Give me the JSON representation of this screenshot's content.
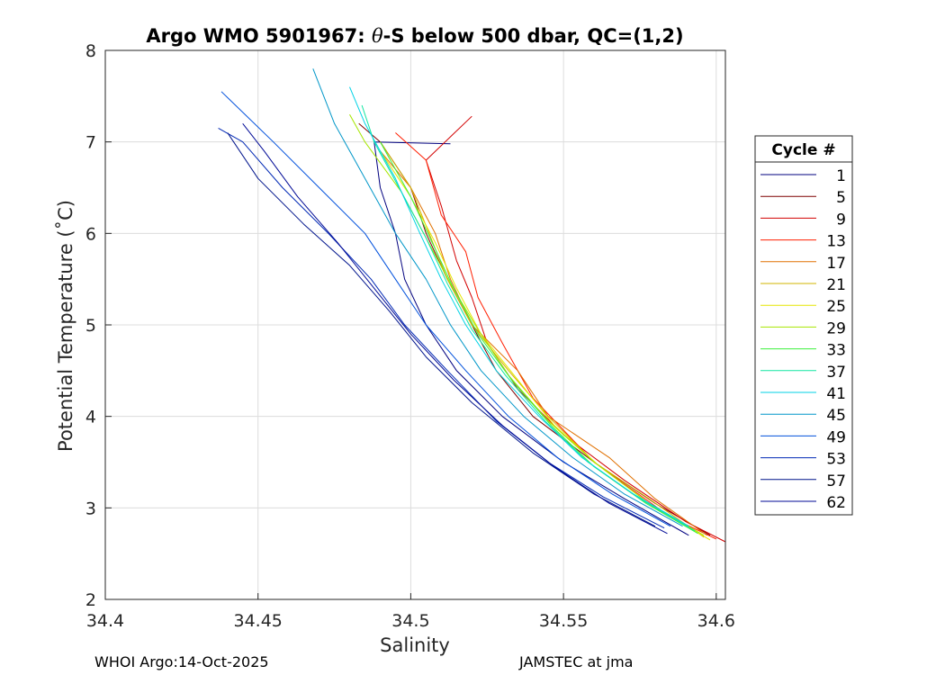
{
  "chart_data": {
    "type": "line",
    "title_prefix": "Argo WMO 5901967: ",
    "title_theta": "θ",
    "title_suffix": "-S below 500 dbar,  QC=(1,2)",
    "xlabel": "Salinity",
    "ylabel": "Potential Temperature (˚C)",
    "xlim": [
      34.4,
      34.603
    ],
    "ylim": [
      2,
      8
    ],
    "xticks": [
      34.4,
      34.45,
      34.5,
      34.55,
      34.6
    ],
    "xtick_labels": [
      "34.4",
      "34.45",
      "34.5",
      "34.55",
      "34.6"
    ],
    "yticks": [
      2,
      3,
      4,
      5,
      6,
      7,
      8
    ],
    "ytick_labels": [
      "2",
      "3",
      "4",
      "5",
      "6",
      "7",
      "8"
    ],
    "grid": true,
    "legend": {
      "title": "Cycle #",
      "placement": "right-outside",
      "entries": [
        {
          "label": "1",
          "color": "#00007f"
        },
        {
          "label": "5",
          "color": "#7f0000"
        },
        {
          "label": "9",
          "color": "#d20000"
        },
        {
          "label": "13",
          "color": "#ff1e00"
        },
        {
          "label": "17",
          "color": "#e07000"
        },
        {
          "label": "21",
          "color": "#d2b400"
        },
        {
          "label": "25",
          "color": "#e6e600"
        },
        {
          "label": "29",
          "color": "#a6e600"
        },
        {
          "label": "33",
          "color": "#3cf03c"
        },
        {
          "label": "37",
          "color": "#10e6a0"
        },
        {
          "label": "41",
          "color": "#00d2e6"
        },
        {
          "label": "45",
          "color": "#0096c8"
        },
        {
          "label": "49",
          "color": "#0050dc"
        },
        {
          "label": "53",
          "color": "#0028b4"
        },
        {
          "label": "57",
          "color": "#00148c"
        },
        {
          "label": "62",
          "color": "#000a96"
        }
      ]
    },
    "series": [
      {
        "name": "1",
        "color": "#00007f",
        "points": [
          [
            34.591,
            2.7
          ],
          [
            34.57,
            3.1
          ],
          [
            34.55,
            3.5
          ],
          [
            34.53,
            4.0
          ],
          [
            34.515,
            4.5
          ],
          [
            34.505,
            5.0
          ],
          [
            34.498,
            5.5
          ],
          [
            34.495,
            6.0
          ],
          [
            34.49,
            6.5
          ],
          [
            34.488,
            7.0
          ],
          [
            34.513,
            6.98
          ]
        ]
      },
      {
        "name": "5",
        "color": "#7f0000",
        "points": [
          [
            34.598,
            2.7
          ],
          [
            34.58,
            3.05
          ],
          [
            34.56,
            3.5
          ],
          [
            34.54,
            4.0
          ],
          [
            34.528,
            4.5
          ],
          [
            34.52,
            5.0
          ],
          [
            34.512,
            5.5
          ],
          [
            34.505,
            6.0
          ],
          [
            34.5,
            6.5
          ],
          [
            34.49,
            7.0
          ],
          [
            34.483,
            7.2
          ]
        ]
      },
      {
        "name": "9",
        "color": "#d20000",
        "points": [
          [
            34.603,
            2.63
          ],
          [
            34.59,
            2.85
          ],
          [
            34.57,
            3.3
          ],
          [
            34.55,
            3.8
          ],
          [
            34.535,
            4.3
          ],
          [
            34.525,
            4.8
          ],
          [
            34.52,
            5.3
          ],
          [
            34.515,
            5.7
          ],
          [
            34.51,
            6.3
          ],
          [
            34.505,
            6.8
          ],
          [
            34.52,
            7.28
          ]
        ]
      },
      {
        "name": "13",
        "color": "#ff1e00",
        "points": [
          [
            34.6,
            2.66
          ],
          [
            34.585,
            2.9
          ],
          [
            34.56,
            3.5
          ],
          [
            34.54,
            4.2
          ],
          [
            34.53,
            4.8
          ],
          [
            34.522,
            5.3
          ],
          [
            34.518,
            5.8
          ],
          [
            34.51,
            6.2
          ],
          [
            34.505,
            6.8
          ],
          [
            34.495,
            7.1
          ]
        ]
      },
      {
        "name": "17",
        "color": "#e07000",
        "points": [
          [
            34.597,
            2.7
          ],
          [
            34.58,
            3.1
          ],
          [
            34.565,
            3.55
          ],
          [
            34.545,
            4.0
          ],
          [
            34.535,
            4.5
          ],
          [
            34.52,
            5.0
          ],
          [
            34.513,
            5.5
          ],
          [
            34.508,
            6.0
          ],
          [
            34.5,
            6.5
          ],
          [
            34.49,
            6.9
          ]
        ]
      },
      {
        "name": "21",
        "color": "#d2b400",
        "points": [
          [
            34.596,
            2.68
          ],
          [
            34.578,
            3.1
          ],
          [
            34.56,
            3.5
          ],
          [
            34.545,
            4.0
          ],
          [
            34.532,
            4.5
          ],
          [
            34.52,
            5.0
          ],
          [
            34.512,
            5.5
          ],
          [
            34.506,
            6.0
          ],
          [
            34.5,
            6.5
          ],
          [
            34.49,
            7.0
          ]
        ]
      },
      {
        "name": "25",
        "color": "#e6e600",
        "points": [
          [
            34.598,
            2.65
          ],
          [
            34.58,
            3.0
          ],
          [
            34.562,
            3.45
          ],
          [
            34.547,
            3.9
          ],
          [
            34.535,
            4.4
          ],
          [
            34.523,
            4.9
          ],
          [
            34.515,
            5.4
          ],
          [
            34.508,
            5.9
          ],
          [
            34.5,
            6.4
          ],
          [
            34.49,
            6.9
          ]
        ]
      },
      {
        "name": "29",
        "color": "#a6e600",
        "points": [
          [
            34.596,
            2.7
          ],
          [
            34.578,
            3.05
          ],
          [
            34.56,
            3.5
          ],
          [
            34.545,
            3.95
          ],
          [
            34.532,
            4.45
          ],
          [
            34.522,
            4.95
          ],
          [
            34.513,
            5.45
          ],
          [
            34.505,
            5.95
          ],
          [
            34.497,
            6.45
          ],
          [
            34.485,
            7.0
          ],
          [
            34.48,
            7.3
          ]
        ]
      },
      {
        "name": "33",
        "color": "#3cf03c",
        "points": [
          [
            34.594,
            2.72
          ],
          [
            34.577,
            3.05
          ],
          [
            34.56,
            3.45
          ],
          [
            34.546,
            3.9
          ],
          [
            34.533,
            4.4
          ],
          [
            34.522,
            4.9
          ],
          [
            34.514,
            5.4
          ],
          [
            34.507,
            5.9
          ],
          [
            34.5,
            6.4
          ],
          [
            34.49,
            7.0
          ]
        ]
      },
      {
        "name": "37",
        "color": "#10e6a0",
        "points": [
          [
            34.593,
            2.75
          ],
          [
            34.575,
            3.1
          ],
          [
            34.558,
            3.5
          ],
          [
            34.544,
            3.95
          ],
          [
            34.531,
            4.45
          ],
          [
            34.52,
            4.95
          ],
          [
            34.512,
            5.45
          ],
          [
            34.505,
            5.95
          ],
          [
            34.497,
            6.45
          ],
          [
            34.488,
            7.0
          ],
          [
            34.484,
            7.4
          ]
        ]
      },
      {
        "name": "41",
        "color": "#00d2e6",
        "points": [
          [
            34.591,
            2.8
          ],
          [
            34.573,
            3.15
          ],
          [
            34.556,
            3.55
          ],
          [
            34.542,
            4.0
          ],
          [
            34.528,
            4.5
          ],
          [
            34.518,
            5.0
          ],
          [
            34.51,
            5.5
          ],
          [
            34.503,
            6.0
          ],
          [
            34.495,
            6.6
          ],
          [
            34.485,
            7.2
          ],
          [
            34.48,
            7.6
          ]
        ]
      },
      {
        "name": "45",
        "color": "#0096c8",
        "points": [
          [
            34.589,
            2.8
          ],
          [
            34.57,
            3.15
          ],
          [
            34.553,
            3.55
          ],
          [
            34.537,
            4.0
          ],
          [
            34.523,
            4.5
          ],
          [
            34.513,
            5.0
          ],
          [
            34.505,
            5.5
          ],
          [
            34.495,
            6.0
          ],
          [
            34.485,
            6.6
          ],
          [
            34.475,
            7.2
          ],
          [
            34.468,
            7.8
          ]
        ]
      },
      {
        "name": "49",
        "color": "#0050dc",
        "points": [
          [
            34.585,
            2.8
          ],
          [
            34.566,
            3.15
          ],
          [
            34.548,
            3.55
          ],
          [
            34.532,
            4.0
          ],
          [
            34.518,
            4.5
          ],
          [
            34.505,
            5.0
          ],
          [
            34.495,
            5.5
          ],
          [
            34.485,
            6.0
          ],
          [
            34.47,
            6.5
          ],
          [
            34.455,
            7.0
          ],
          [
            34.438,
            7.55
          ]
        ]
      },
      {
        "name": "53",
        "color": "#0028b4",
        "points": [
          [
            34.583,
            2.78
          ],
          [
            34.563,
            3.12
          ],
          [
            34.545,
            3.5
          ],
          [
            34.528,
            3.95
          ],
          [
            34.512,
            4.5
          ],
          [
            34.498,
            5.0
          ],
          [
            34.487,
            5.5
          ],
          [
            34.473,
            6.0
          ],
          [
            34.458,
            6.5
          ],
          [
            34.445,
            7.0
          ],
          [
            34.437,
            7.15
          ]
        ]
      },
      {
        "name": "57",
        "color": "#00148c",
        "points": [
          [
            34.58,
            2.8
          ],
          [
            34.56,
            3.15
          ],
          [
            34.54,
            3.6
          ],
          [
            34.52,
            4.15
          ],
          [
            34.505,
            4.65
          ],
          [
            34.493,
            5.15
          ],
          [
            34.48,
            5.65
          ],
          [
            34.465,
            6.1
          ],
          [
            34.45,
            6.6
          ],
          [
            34.44,
            7.1
          ]
        ]
      },
      {
        "name": "62",
        "color": "#000a96",
        "points": [
          [
            34.584,
            2.72
          ],
          [
            34.565,
            3.05
          ],
          [
            34.547,
            3.45
          ],
          [
            34.53,
            3.9
          ],
          [
            34.514,
            4.4
          ],
          [
            34.5,
            4.9
          ],
          [
            34.488,
            5.4
          ],
          [
            34.476,
            5.9
          ],
          [
            34.463,
            6.4
          ],
          [
            34.452,
            6.9
          ],
          [
            34.445,
            7.2
          ]
        ]
      }
    ]
  },
  "footer": {
    "left": "WHOI Argo:14-Oct-2025",
    "right": "JAMSTEC at jma"
  }
}
